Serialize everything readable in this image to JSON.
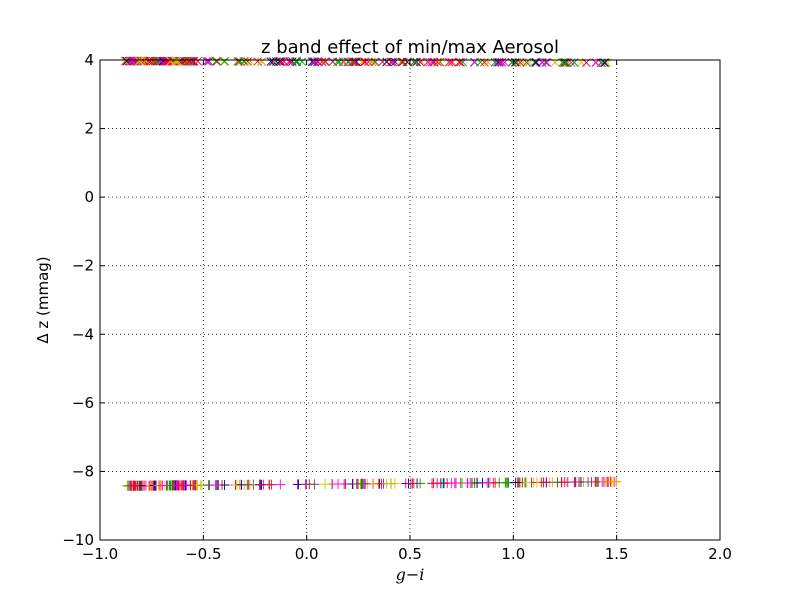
{
  "chart_data": {
    "type": "scatter",
    "title": "z band effect of min/max Aerosol",
    "xlabel": "g−i",
    "ylabel": "Δ z (mmag)",
    "xlim": [
      -1.0,
      2.0
    ],
    "ylim": [
      -10,
      4
    ],
    "xticks": [
      "−1.0",
      "−0.5",
      "0.0",
      "0.5",
      "1.0",
      "1.5",
      "2.0"
    ],
    "yticks": [
      "−10",
      "−8",
      "−6",
      "−4",
      "−2",
      "0",
      "2",
      "4"
    ],
    "grid": true,
    "series": [
      {
        "marker": "x",
        "x_range": [
          -0.88,
          1.52
        ],
        "y_start": 3.97,
        "y_end": 3.92,
        "count": 260,
        "colors": [
          "#ff00ff",
          "#e0006a",
          "#ff0000",
          "#ffaa00",
          "#cccc00",
          "#00aa00",
          "#555555",
          "#000088"
        ]
      },
      {
        "marker": "+",
        "x_range": [
          -0.88,
          1.52
        ],
        "y_start": -8.42,
        "y_end": -8.3,
        "count": 260,
        "colors": [
          "#ff00ff",
          "#e0006a",
          "#ff0000",
          "#ffaa00",
          "#cccc00",
          "#00aa00",
          "#555555",
          "#000088"
        ]
      }
    ]
  }
}
